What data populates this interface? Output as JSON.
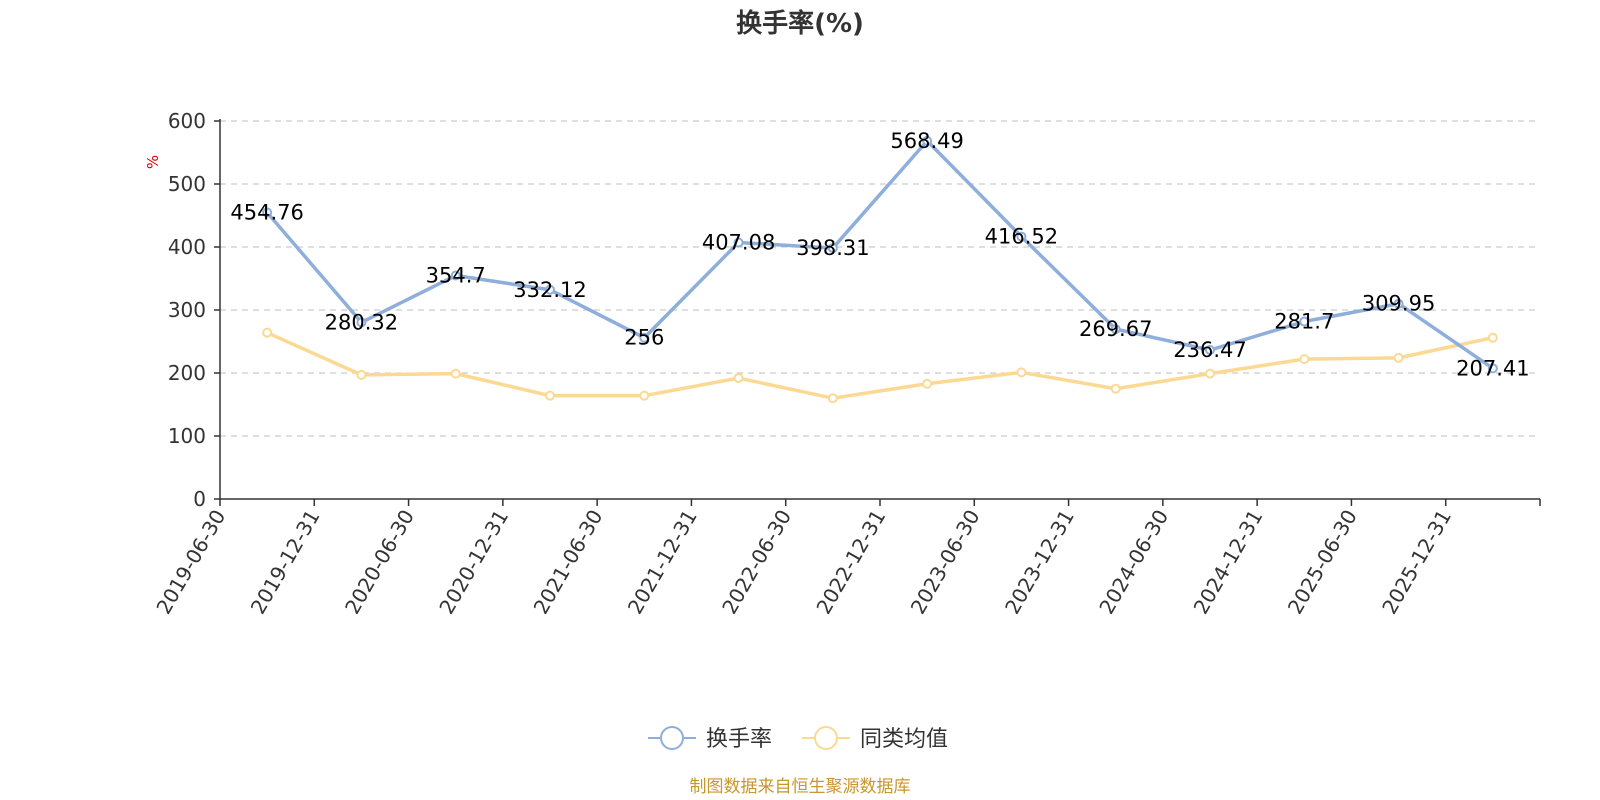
{
  "chart_data": {
    "type": "line",
    "title": "换手率(%)",
    "ylabel": "%",
    "ylim": [
      0,
      600
    ],
    "yticks": [
      0,
      100,
      200,
      300,
      400,
      500,
      600
    ],
    "grid": true,
    "categories": [
      "2019-06-30",
      "2019-12-31",
      "2020-06-30",
      "2020-12-31",
      "2021-06-30",
      "2021-12-31",
      "2022-06-30",
      "2022-12-31",
      "2023-06-30",
      "2023-12-31",
      "2024-06-30",
      "2024-12-31",
      "2025-06-30",
      "2025-12-31"
    ],
    "series": [
      {
        "name": "换手率",
        "color": "#8eaedb",
        "values": [
          454.76,
          280.32,
          354.7,
          332.12,
          256,
          407.08,
          398.31,
          568.49,
          416.52,
          269.67,
          236.47,
          281.7,
          309.95,
          207.41
        ],
        "labels": [
          "454.76",
          "280.32",
          "354.7",
          "332.12",
          "256",
          "407.08",
          "398.31",
          "568.49",
          "416.52",
          "269.67",
          "236.47",
          "281.7",
          "309.95",
          "207.41"
        ]
      },
      {
        "name": "同类均值",
        "color": "#fbd993",
        "values": [
          264,
          197,
          199,
          164,
          164,
          192,
          160,
          183,
          201,
          175,
          199,
          222,
          224,
          256
        ]
      }
    ],
    "legend_position": "bottom-center",
    "source": "制图数据来自恒生聚源数据库"
  }
}
